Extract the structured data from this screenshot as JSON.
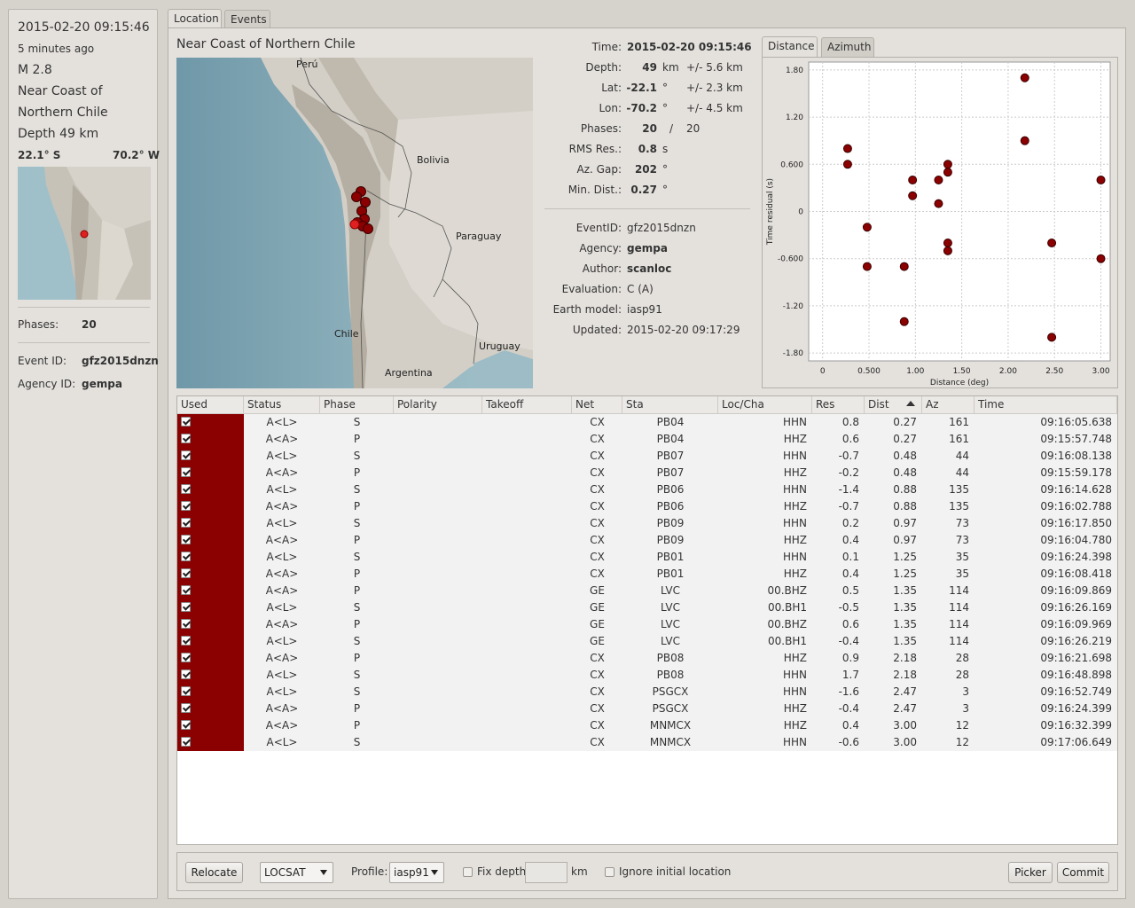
{
  "summary": {
    "datetime": "2015-02-20 09:15:46",
    "ago": "5 minutes ago",
    "magnitude": "M 2.8",
    "region_line1": "Near Coast of",
    "region_line2": "Northern Chile",
    "depth": "Depth 49 km",
    "lat": "22.1° S",
    "lon": "70.2° W",
    "phases_label": "Phases:",
    "phases_value": "20",
    "event_id_label": "Event ID:",
    "event_id_value": "gfz2015dnzn",
    "agency_id_label": "Agency ID:",
    "agency_id_value": "gempa"
  },
  "tabs": [
    "Location",
    "Events"
  ],
  "location": {
    "region_title": "Near Coast of Northern Chile",
    "map_labels": {
      "peru": "Perú",
      "bolivia": "Bolivia",
      "paraguay": "Paraguay",
      "chile": "Chile",
      "argentina": "Argentina",
      "uruguay": "Uruguay"
    },
    "info": {
      "time_label": "Time:",
      "time_value": "2015-02-20 09:15:46",
      "depth_label": "Depth:",
      "depth_value": "49",
      "depth_unit": "km",
      "depth_err": "+/- 5.6 km",
      "lat_label": "Lat:",
      "lat_value": "-22.1",
      "lat_unit": "°",
      "lat_err": "+/- 2.3 km",
      "lon_label": "Lon:",
      "lon_value": "-70.2",
      "lon_unit": "°",
      "lon_err": "+/- 4.5 km",
      "phases_label": "Phases:",
      "phases_used": "20",
      "phases_sep": "/",
      "phases_total": "20",
      "rms_label": "RMS Res.:",
      "rms_value": "0.8",
      "rms_unit": "s",
      "gap_label": "Az. Gap:",
      "gap_value": "202",
      "gap_unit": "°",
      "mindist_label": "Min. Dist.:",
      "mindist_value": "0.27",
      "mindist_unit": "°",
      "eventid_label": "EventID:",
      "eventid_value": "gfz2015dnzn",
      "agency_label": "Agency:",
      "agency_value": "gempa",
      "author_label": "Author:",
      "author_value": "scanloc",
      "evaluation_label": "Evaluation:",
      "evaluation_value": "C (A)",
      "earthmodel_label": "Earth model:",
      "earthmodel_value": "iasp91",
      "updated_label": "Updated:",
      "updated_value": "2015-02-20 09:17:29"
    }
  },
  "plot_tabs": [
    "Distance",
    "Azimuth"
  ],
  "chart_data": {
    "type": "scatter",
    "xlabel": "Distance (deg)",
    "ylabel": "Time residual (s)",
    "xlim": [
      -0.15,
      3.1
    ],
    "ylim": [
      -1.9,
      1.9
    ],
    "xticks": [
      "0",
      "0.500",
      "1.00",
      "1.50",
      "2.00",
      "2.50",
      "3.00"
    ],
    "yticks": [
      "1.80",
      "1.20",
      "0.600",
      "0",
      "-0.600",
      "-1.20",
      "-1.80"
    ],
    "grid": true,
    "marker_color": "#8b0000",
    "points": [
      [
        0.27,
        0.8
      ],
      [
        0.27,
        0.6
      ],
      [
        0.48,
        -0.7
      ],
      [
        0.48,
        -0.2
      ],
      [
        0.88,
        -1.4
      ],
      [
        0.88,
        -0.7
      ],
      [
        0.97,
        0.2
      ],
      [
        0.97,
        0.4
      ],
      [
        1.25,
        0.1
      ],
      [
        1.25,
        0.4
      ],
      [
        1.35,
        0.5
      ],
      [
        1.35,
        -0.5
      ],
      [
        1.35,
        0.6
      ],
      [
        1.35,
        -0.4
      ],
      [
        2.18,
        0.9
      ],
      [
        2.18,
        1.7
      ],
      [
        2.47,
        -1.6
      ],
      [
        2.47,
        -0.4
      ],
      [
        3.0,
        0.4
      ],
      [
        3.0,
        -0.6
      ]
    ]
  },
  "table": {
    "headers": [
      "Used",
      "Status",
      "Phase",
      "Polarity",
      "Takeoff",
      "Net",
      "Sta",
      "Loc/Cha",
      "Res",
      "Dist",
      "Az",
      "Time"
    ],
    "used_color": "#8b0000",
    "rows": [
      {
        "status": "A<L>",
        "phase": "S",
        "net": "CX",
        "sta": "PB04",
        "cha": "HHN",
        "res": "0.8",
        "dist": "0.27",
        "az": "161",
        "time": "09:16:05.638"
      },
      {
        "status": "A<A>",
        "phase": "P",
        "net": "CX",
        "sta": "PB04",
        "cha": "HHZ",
        "res": "0.6",
        "dist": "0.27",
        "az": "161",
        "time": "09:15:57.748"
      },
      {
        "status": "A<L>",
        "phase": "S",
        "net": "CX",
        "sta": "PB07",
        "cha": "HHN",
        "res": "-0.7",
        "dist": "0.48",
        "az": "44",
        "time": "09:16:08.138"
      },
      {
        "status": "A<A>",
        "phase": "P",
        "net": "CX",
        "sta": "PB07",
        "cha": "HHZ",
        "res": "-0.2",
        "dist": "0.48",
        "az": "44",
        "time": "09:15:59.178"
      },
      {
        "status": "A<L>",
        "phase": "S",
        "net": "CX",
        "sta": "PB06",
        "cha": "HHN",
        "res": "-1.4",
        "dist": "0.88",
        "az": "135",
        "time": "09:16:14.628"
      },
      {
        "status": "A<A>",
        "phase": "P",
        "net": "CX",
        "sta": "PB06",
        "cha": "HHZ",
        "res": "-0.7",
        "dist": "0.88",
        "az": "135",
        "time": "09:16:02.788"
      },
      {
        "status": "A<L>",
        "phase": "S",
        "net": "CX",
        "sta": "PB09",
        "cha": "HHN",
        "res": "0.2",
        "dist": "0.97",
        "az": "73",
        "time": "09:16:17.850"
      },
      {
        "status": "A<A>",
        "phase": "P",
        "net": "CX",
        "sta": "PB09",
        "cha": "HHZ",
        "res": "0.4",
        "dist": "0.97",
        "az": "73",
        "time": "09:16:04.780"
      },
      {
        "status": "A<L>",
        "phase": "S",
        "net": "CX",
        "sta": "PB01",
        "cha": "HHN",
        "res": "0.1",
        "dist": "1.25",
        "az": "35",
        "time": "09:16:24.398"
      },
      {
        "status": "A<A>",
        "phase": "P",
        "net": "CX",
        "sta": "PB01",
        "cha": "HHZ",
        "res": "0.4",
        "dist": "1.25",
        "az": "35",
        "time": "09:16:08.418"
      },
      {
        "status": "A<A>",
        "phase": "P",
        "net": "GE",
        "sta": "LVC",
        "cha": "00.BHZ",
        "res": "0.5",
        "dist": "1.35",
        "az": "114",
        "time": "09:16:09.869"
      },
      {
        "status": "A<L>",
        "phase": "S",
        "net": "GE",
        "sta": "LVC",
        "cha": "00.BH1",
        "res": "-0.5",
        "dist": "1.35",
        "az": "114",
        "time": "09:16:26.169"
      },
      {
        "status": "A<A>",
        "phase": "P",
        "net": "GE",
        "sta": "LVC",
        "cha": "00.BHZ",
        "res": "0.6",
        "dist": "1.35",
        "az": "114",
        "time": "09:16:09.969"
      },
      {
        "status": "A<L>",
        "phase": "S",
        "net": "GE",
        "sta": "LVC",
        "cha": "00.BH1",
        "res": "-0.4",
        "dist": "1.35",
        "az": "114",
        "time": "09:16:26.219"
      },
      {
        "status": "A<A>",
        "phase": "P",
        "net": "CX",
        "sta": "PB08",
        "cha": "HHZ",
        "res": "0.9",
        "dist": "2.18",
        "az": "28",
        "time": "09:16:21.698"
      },
      {
        "status": "A<L>",
        "phase": "S",
        "net": "CX",
        "sta": "PB08",
        "cha": "HHN",
        "res": "1.7",
        "dist": "2.18",
        "az": "28",
        "time": "09:16:48.898"
      },
      {
        "status": "A<L>",
        "phase": "S",
        "net": "CX",
        "sta": "PSGCX",
        "cha": "HHN",
        "res": "-1.6",
        "dist": "2.47",
        "az": "3",
        "time": "09:16:52.749"
      },
      {
        "status": "A<A>",
        "phase": "P",
        "net": "CX",
        "sta": "PSGCX",
        "cha": "HHZ",
        "res": "-0.4",
        "dist": "2.47",
        "az": "3",
        "time": "09:16:24.399"
      },
      {
        "status": "A<A>",
        "phase": "P",
        "net": "CX",
        "sta": "MNMCX",
        "cha": "HHZ",
        "res": "0.4",
        "dist": "3.00",
        "az": "12",
        "time": "09:16:32.399"
      },
      {
        "status": "A<L>",
        "phase": "S",
        "net": "CX",
        "sta": "MNMCX",
        "cha": "HHN",
        "res": "-0.6",
        "dist": "3.00",
        "az": "12",
        "time": "09:17:06.649"
      }
    ]
  },
  "bottom": {
    "relocate": "Relocate",
    "method": "LOCSAT",
    "profile_label": "Profile:",
    "profile": "iasp91",
    "fix_depth": "Fix depth",
    "fix_depth_value": "",
    "km": "km",
    "ignore_initial": "Ignore initial location",
    "picker": "Picker",
    "commit": "Commit"
  }
}
